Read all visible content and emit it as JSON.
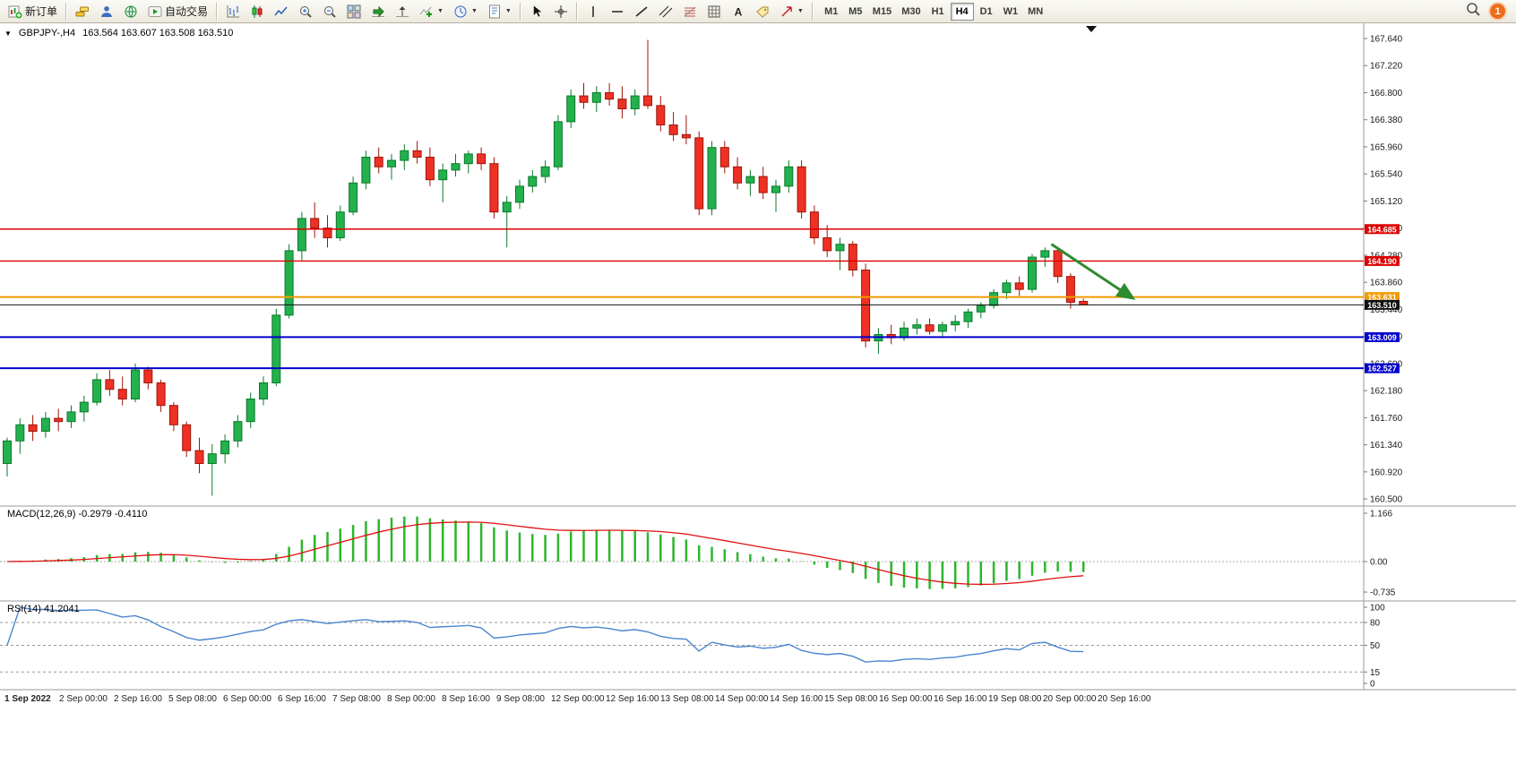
{
  "toolbar": {
    "new_order_label": "新订单",
    "autotrade_label": "自动交易",
    "timeframes": [
      "M1",
      "M5",
      "M15",
      "M30",
      "H1",
      "H4",
      "D1",
      "W1",
      "MN"
    ],
    "active_timeframe": "H4",
    "notification_count": "1"
  },
  "chart": {
    "symbol_period": "GBPJPY-,H4",
    "ohlc": "163.564 163.607 163.508 163.510",
    "price_axis": [
      "167.640",
      "167.220",
      "166.800",
      "166.380",
      "165.960",
      "165.540",
      "165.120",
      "164.700",
      "164.280",
      "163.860",
      "163.440",
      "163.020",
      "162.600",
      "162.180",
      "161.760",
      "161.340",
      "160.920",
      "160.500"
    ],
    "levels": [
      {
        "label": "164.685",
        "value": 164.685,
        "color": "#dd0000",
        "width": 1.4
      },
      {
        "label": "164.190",
        "value": 164.19,
        "color": "#dd0000",
        "width": 1.4
      },
      {
        "label": "163.631",
        "value": 163.631,
        "color": "#f29b00",
        "width": 2
      },
      {
        "label": "163.510",
        "value": 163.51,
        "color": "#111111",
        "width": 1
      },
      {
        "label": "163.009",
        "value": 163.009,
        "color": "#0000cc",
        "width": 2
      },
      {
        "label": "162.527",
        "value": 162.527,
        "color": "#0000cc",
        "width": 2
      }
    ],
    "time_axis": [
      "1 Sep 2022",
      "2 Sep 00:00",
      "2 Sep 16:00",
      "5 Sep 08:00",
      "6 Sep 00:00",
      "6 Sep 16:00",
      "7 Sep 08:00",
      "8 Sep 00:00",
      "8 Sep 16:00",
      "9 Sep 08:00",
      "12 Sep 00:00",
      "12 Sep 16:00",
      "13 Sep 08:00",
      "14 Sep 00:00",
      "14 Sep 16:00",
      "15 Sep 08:00",
      "16 Sep 00:00",
      "16 Sep 16:00",
      "19 Sep 08:00",
      "20 Sep 00:00",
      "20 Sep 16:00"
    ]
  },
  "chart_data": {
    "type": "candlestick",
    "symbol": "GBPJPY-",
    "timeframe": "H4",
    "title": "GBPJPY-,H4 163.564 163.607 163.508 163.510",
    "ylim": [
      160.5,
      167.64
    ],
    "up_color": "#23b14d",
    "up_border": "#0b section",
    "up_border_color": "#0b7a2c",
    "down_color": "#ee3124",
    "down_border_color": "#9c1508",
    "candles": [
      [
        161.05,
        161.45,
        160.85,
        161.4
      ],
      [
        161.4,
        161.75,
        161.2,
        161.65
      ],
      [
        161.65,
        161.8,
        161.4,
        161.55
      ],
      [
        161.55,
        161.85,
        161.45,
        161.75
      ],
      [
        161.75,
        161.9,
        161.55,
        161.7
      ],
      [
        161.7,
        161.95,
        161.6,
        161.85
      ],
      [
        161.85,
        162.1,
        161.7,
        162.0
      ],
      [
        162.0,
        162.45,
        161.95,
        162.35
      ],
      [
        162.35,
        162.5,
        162.1,
        162.2
      ],
      [
        162.2,
        162.4,
        161.95,
        162.05
      ],
      [
        162.05,
        162.6,
        162.0,
        162.5
      ],
      [
        162.5,
        162.55,
        162.2,
        162.3
      ],
      [
        162.3,
        162.35,
        161.85,
        161.95
      ],
      [
        161.95,
        162.0,
        161.55,
        161.65
      ],
      [
        161.65,
        161.7,
        161.15,
        161.25
      ],
      [
        161.25,
        161.45,
        160.9,
        161.05
      ],
      [
        161.05,
        161.35,
        160.55,
        161.2
      ],
      [
        161.2,
        161.5,
        161.05,
        161.4
      ],
      [
        161.4,
        161.8,
        161.3,
        161.7
      ],
      [
        161.7,
        162.15,
        161.6,
        162.05
      ],
      [
        162.05,
        162.4,
        161.95,
        162.3
      ],
      [
        162.3,
        163.45,
        162.25,
        163.35
      ],
      [
        163.35,
        164.45,
        163.3,
        164.35
      ],
      [
        164.35,
        164.95,
        164.2,
        164.85
      ],
      [
        164.85,
        165.1,
        164.55,
        164.7
      ],
      [
        164.7,
        164.9,
        164.4,
        164.55
      ],
      [
        164.55,
        165.05,
        164.5,
        164.95
      ],
      [
        164.95,
        165.5,
        164.9,
        165.4
      ],
      [
        165.4,
        165.9,
        165.3,
        165.8
      ],
      [
        165.8,
        165.95,
        165.55,
        165.65
      ],
      [
        165.65,
        165.85,
        165.45,
        165.75
      ],
      [
        165.75,
        166.0,
        165.6,
        165.9
      ],
      [
        165.9,
        166.05,
        165.7,
        165.8
      ],
      [
        165.8,
        165.95,
        165.35,
        165.45
      ],
      [
        165.45,
        165.7,
        165.1,
        165.6
      ],
      [
        165.6,
        165.85,
        165.5,
        165.7
      ],
      [
        165.7,
        165.9,
        165.55,
        165.85
      ],
      [
        165.85,
        165.95,
        165.6,
        165.7
      ],
      [
        165.7,
        165.8,
        164.85,
        164.95
      ],
      [
        164.95,
        165.2,
        164.4,
        165.1
      ],
      [
        165.1,
        165.45,
        165.0,
        165.35
      ],
      [
        165.35,
        165.6,
        165.25,
        165.5
      ],
      [
        165.5,
        165.75,
        165.4,
        165.65
      ],
      [
        165.65,
        166.45,
        165.6,
        166.35
      ],
      [
        166.35,
        166.85,
        166.25,
        166.75
      ],
      [
        166.75,
        166.95,
        166.55,
        166.65
      ],
      [
        166.65,
        166.9,
        166.5,
        166.8
      ],
      [
        166.8,
        166.95,
        166.6,
        166.7
      ],
      [
        166.7,
        166.9,
        166.4,
        166.55
      ],
      [
        166.55,
        166.85,
        166.45,
        166.75
      ],
      [
        166.75,
        167.62,
        166.55,
        166.6
      ],
      [
        166.6,
        166.75,
        166.2,
        166.3
      ],
      [
        166.3,
        166.5,
        166.05,
        166.15
      ],
      [
        166.15,
        166.45,
        166.0,
        166.1
      ],
      [
        166.1,
        166.2,
        164.9,
        165.0
      ],
      [
        165.0,
        166.05,
        164.9,
        165.95
      ],
      [
        165.95,
        166.05,
        165.55,
        165.65
      ],
      [
        165.65,
        165.8,
        165.3,
        165.4
      ],
      [
        165.4,
        165.6,
        165.2,
        165.5
      ],
      [
        165.5,
        165.65,
        165.15,
        165.25
      ],
      [
        165.25,
        165.45,
        164.95,
        165.35
      ],
      [
        165.35,
        165.75,
        165.25,
        165.65
      ],
      [
        165.65,
        165.75,
        164.85,
        164.95
      ],
      [
        164.95,
        165.05,
        164.45,
        164.55
      ],
      [
        164.55,
        164.75,
        164.25,
        164.35
      ],
      [
        164.35,
        164.55,
        164.05,
        164.45
      ],
      [
        164.45,
        164.5,
        163.95,
        164.05
      ],
      [
        164.05,
        164.15,
        162.85,
        162.95
      ],
      [
        162.95,
        163.15,
        162.75,
        163.05
      ],
      [
        163.05,
        163.2,
        162.9,
        163.0
      ],
      [
        163.0,
        163.25,
        162.95,
        163.15
      ],
      [
        163.15,
        163.3,
        163.05,
        163.2
      ],
      [
        163.2,
        163.3,
        163.05,
        163.1
      ],
      [
        163.1,
        163.25,
        163.0,
        163.2
      ],
      [
        163.2,
        163.35,
        163.1,
        163.25
      ],
      [
        163.25,
        163.45,
        163.15,
        163.4
      ],
      [
        163.4,
        163.55,
        163.3,
        163.5
      ],
      [
        163.5,
        163.75,
        163.45,
        163.7
      ],
      [
        163.7,
        163.9,
        163.6,
        163.85
      ],
      [
        163.85,
        163.95,
        163.65,
        163.75
      ],
      [
        163.75,
        164.3,
        163.7,
        164.25
      ],
      [
        164.25,
        164.4,
        164.1,
        164.35
      ],
      [
        164.35,
        164.4,
        163.85,
        163.95
      ],
      [
        163.95,
        164.0,
        163.45,
        163.55
      ],
      [
        163.564,
        163.607,
        163.508,
        163.51
      ]
    ],
    "macd": {
      "label_text": "MACD(12,26,9) -0.2979 -0.4110",
      "params": [
        12,
        26,
        9
      ],
      "main_value": -0.2979,
      "signal_value": -0.411,
      "histogram_color": "#2db52d",
      "signal_color": "#e01010",
      "axis": [
        {
          "label": "1.166",
          "value": 1.166
        },
        {
          "label": "0.00",
          "value": 0
        },
        {
          "label": "-0.735",
          "value": -0.735
        }
      ]
    },
    "rsi": {
      "label_text": "RSI(14) 41.2041",
      "period": 14,
      "value": 41.2041,
      "line_color": "#4a86d0",
      "levels": [
        80,
        50,
        15
      ],
      "axis": [
        {
          "label": "100",
          "value": 100
        },
        {
          "label": "80",
          "value": 80
        },
        {
          "label": "50",
          "value": 50
        },
        {
          "label": "15",
          "value": 15
        },
        {
          "label": "0",
          "value": 0
        }
      ]
    },
    "annotations": [
      {
        "type": "arrow",
        "color": "#2e8b2e",
        "from_bar": 81.5,
        "from_price": 164.45,
        "to_bar": 87.8,
        "to_price": 163.62
      }
    ]
  }
}
